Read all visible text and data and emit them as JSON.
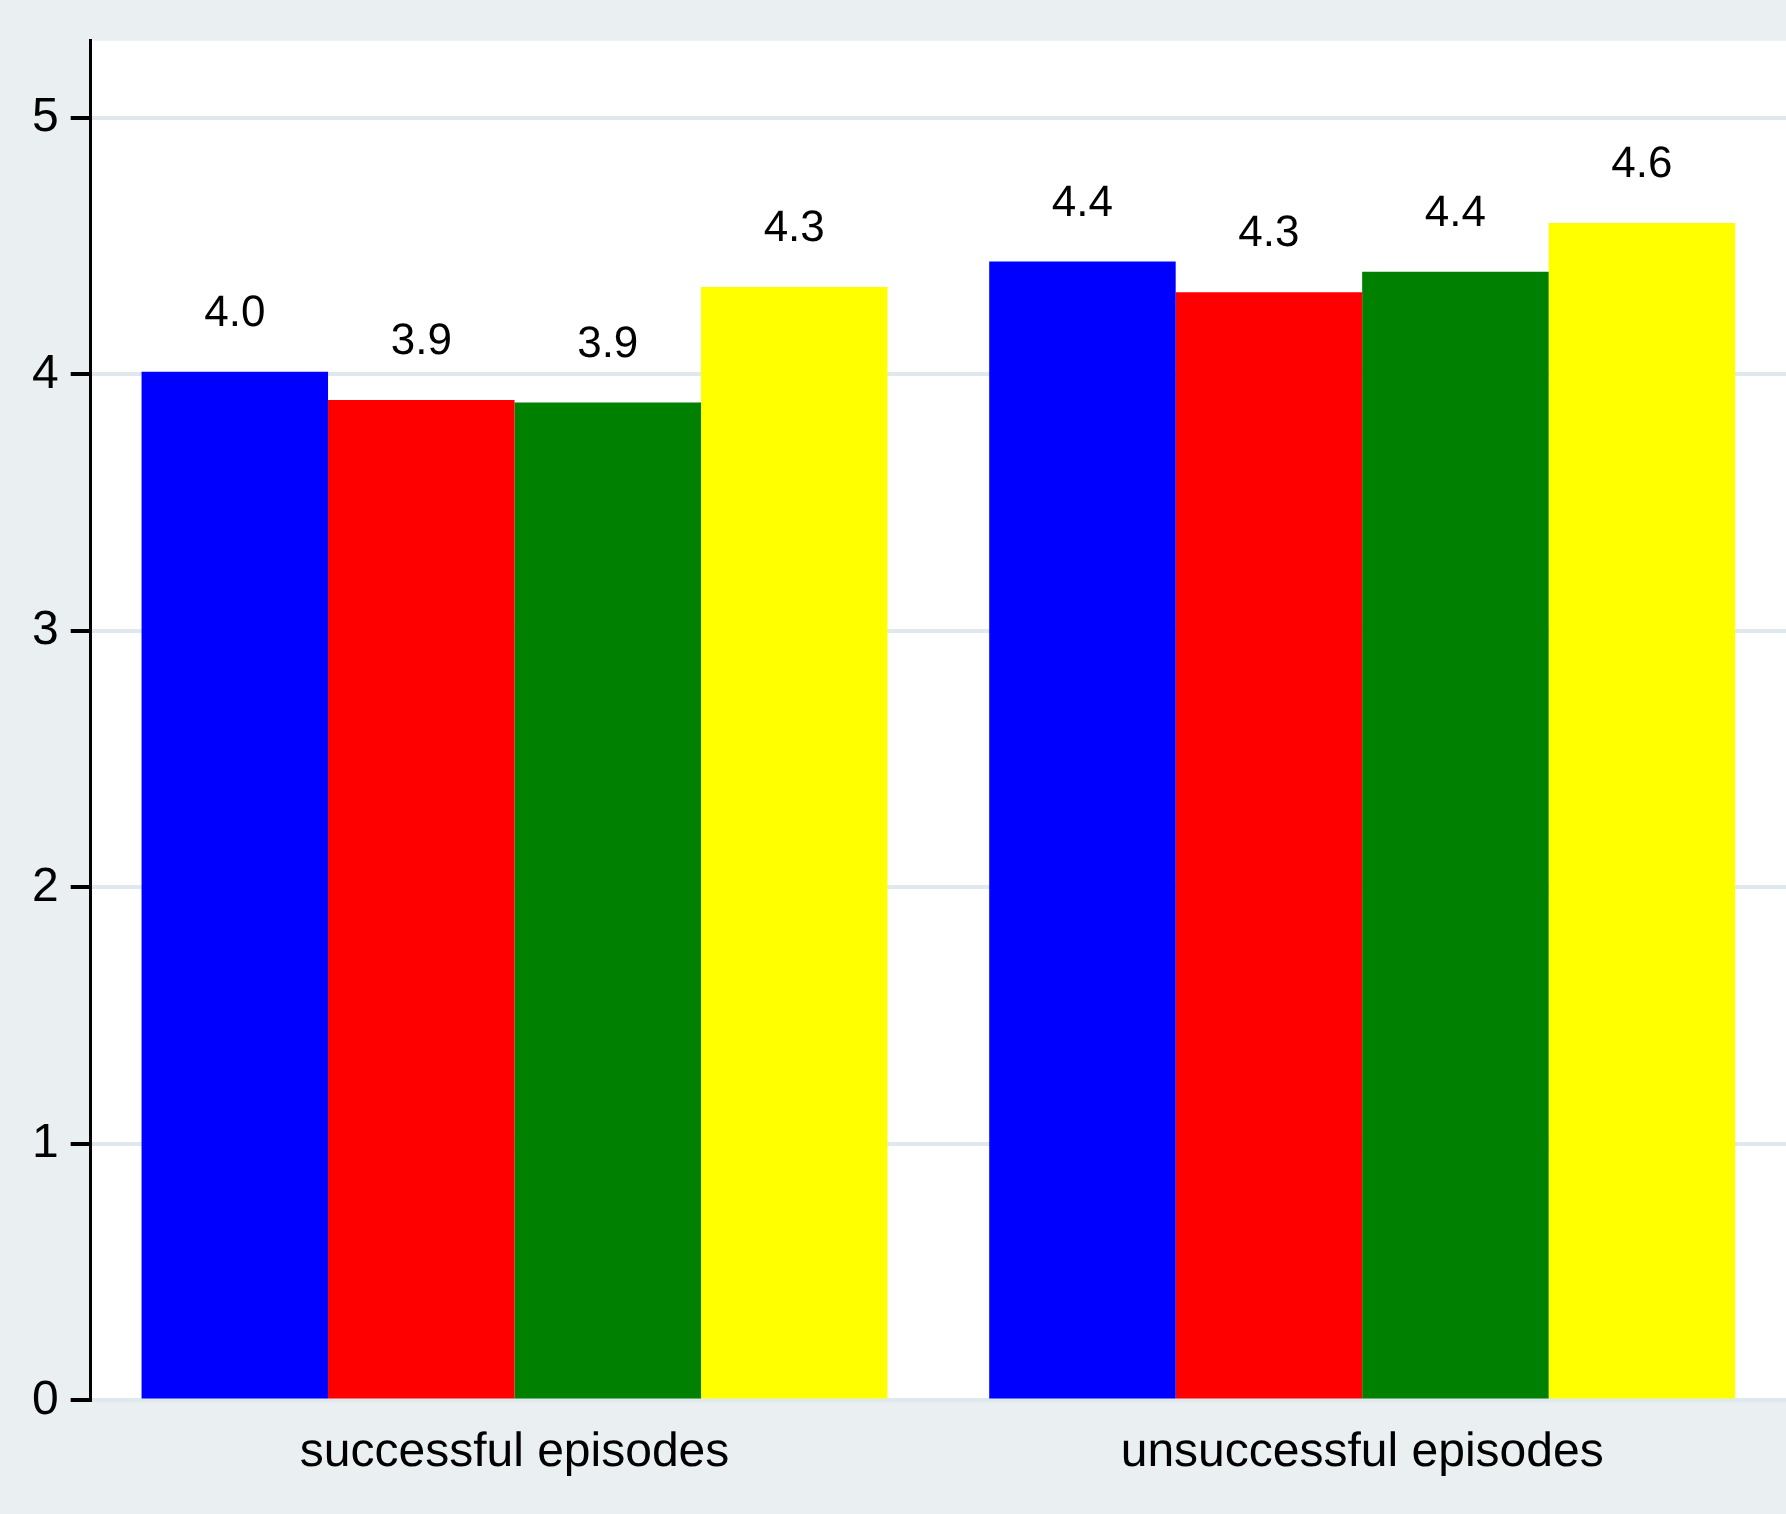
{
  "chart_data": {
    "type": "bar",
    "categories": [
      "successful episodes",
      "unsuccessful episodes"
    ],
    "series": [
      {
        "color": "#0000ff",
        "values": [
          4.01,
          4.44
        ],
        "value_labels": [
          "4.0",
          "4.4"
        ]
      },
      {
        "color": "#ff0000",
        "values": [
          3.9,
          4.32
        ],
        "value_labels": [
          "3.9",
          "4.3"
        ]
      },
      {
        "color": "#008000",
        "values": [
          3.89,
          4.4
        ],
        "value_labels": [
          "3.9",
          "4.4"
        ]
      },
      {
        "color": "#ffff00",
        "values": [
          4.34,
          4.59
        ],
        "value_labels": [
          "4.3",
          "4.6"
        ]
      }
    ],
    "ylim": [
      0,
      5.3
    ],
    "yticks": [
      0,
      1,
      2,
      3,
      4,
      5
    ],
    "grid": "y",
    "legend": false
  }
}
